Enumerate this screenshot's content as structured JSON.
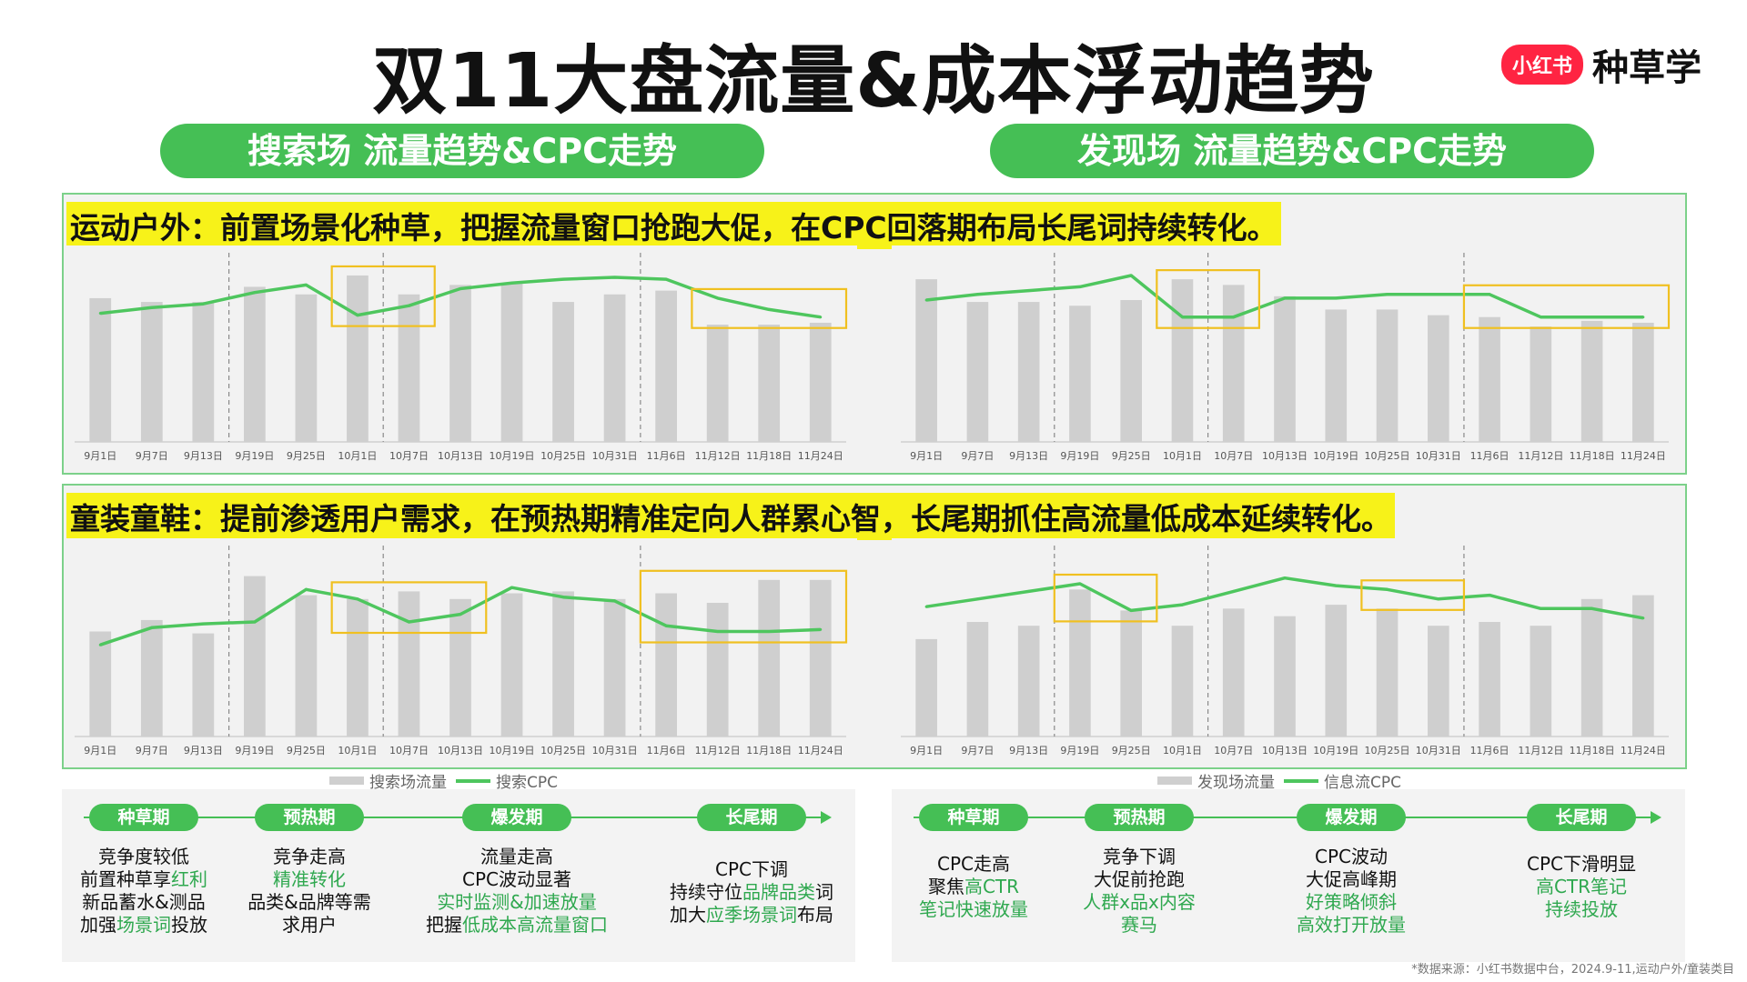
{
  "title": "双11大盘流量&成本浮动趋势",
  "brand": {
    "logo": "小红书",
    "text": "种草学"
  },
  "sections": [
    {
      "pill": "搜索场 流量趋势&CPC走势"
    },
    {
      "pill": "发现场 流量趋势&CPC走势"
    }
  ],
  "rows": [
    {
      "heading": "运动户外：前置场景化种草，把握流量窗口抢跑大促，在CPC回落期布局长尾词持续转化。"
    },
    {
      "heading": "童装童鞋：提前渗透用户需求，在预热期精准定向人群累心智，长尾期抓住高流量低成本延续转化。"
    }
  ],
  "chart_data": [
    {
      "type": "bar",
      "panel": "运动户外-搜索场",
      "categories": [
        "9月1日",
        "9月7日",
        "9月13日",
        "9月19日",
        "9月25日",
        "10月1日",
        "10月7日",
        "10月13日",
        "10月19日",
        "10月25日",
        "10月31日",
        "11月6日",
        "11月12日",
        "11月18日",
        "11月24日"
      ],
      "series": [
        {
          "name": "搜索场流量",
          "kind": "bar",
          "values": [
            76,
            74,
            74,
            82,
            78,
            88,
            78,
            83,
            84,
            74,
            78,
            80,
            62,
            62,
            63
          ]
        },
        {
          "name": "搜索CPC",
          "kind": "line",
          "values": [
            68,
            71,
            73,
            79,
            83,
            67,
            72,
            81,
            84,
            86,
            87,
            86,
            76,
            70,
            66
          ]
        }
      ],
      "ylim": [
        0,
        100
      ],
      "vlines_after": [
        "9月13日",
        "10月1日",
        "10月31日"
      ],
      "highlight_boxes": [
        [
          "10月1日",
          "10月7日"
        ],
        [
          "11月12日",
          "11月24日"
        ]
      ]
    },
    {
      "type": "bar",
      "panel": "运动户外-发现场",
      "categories": [
        "9月1日",
        "9月7日",
        "9月13日",
        "9月19日",
        "9月25日",
        "10月1日",
        "10月7日",
        "10月13日",
        "10月19日",
        "10月25日",
        "10月31日",
        "11月6日",
        "11月12日",
        "11月18日",
        "11月24日"
      ],
      "series": [
        {
          "name": "发现场流量",
          "kind": "bar",
          "values": [
            86,
            74,
            74,
            72,
            75,
            86,
            83,
            77,
            70,
            70,
            67,
            66,
            61,
            64,
            63
          ]
        },
        {
          "name": "信息流CPC",
          "kind": "line",
          "values": [
            75,
            78,
            80,
            82,
            88,
            66,
            66,
            76,
            76,
            78,
            78,
            78,
            66,
            66,
            66
          ]
        }
      ],
      "ylim": [
        0,
        100
      ],
      "vlines_after": [
        "9月13日",
        "10月1日",
        "10月31日"
      ],
      "highlight_boxes": [
        [
          "10月1日",
          "10月7日"
        ],
        [
          "11月6日",
          "11月24日"
        ]
      ]
    },
    {
      "type": "bar",
      "panel": "童装童鞋-搜索场",
      "categories": [
        "9月1日",
        "9月7日",
        "9月13日",
        "9月19日",
        "9月25日",
        "10月1日",
        "10月7日",
        "10月13日",
        "10月19日",
        "10月25日",
        "10月31日",
        "11月6日",
        "11月12日",
        "11月18日",
        "11月24日"
      ],
      "series": [
        {
          "name": "搜索场流量",
          "kind": "bar",
          "values": [
            55,
            61,
            54,
            84,
            74,
            72,
            76,
            72,
            75,
            76,
            72,
            75,
            70,
            82,
            82
          ]
        },
        {
          "name": "搜索CPC",
          "kind": "line",
          "values": [
            48,
            57,
            59,
            60,
            77,
            72,
            60,
            64,
            78,
            73,
            71,
            58,
            55,
            55,
            56
          ]
        }
      ],
      "ylim": [
        0,
        100
      ],
      "vlines_after": [
        "9月13日",
        "10月1日",
        "10月31日"
      ],
      "highlight_boxes": [
        [
          "10月1日",
          "10月13日"
        ],
        [
          "11月6日",
          "11月24日"
        ]
      ]
    },
    {
      "type": "bar",
      "panel": "童装童鞋-发现场",
      "categories": [
        "9月1日",
        "9月7日",
        "9月13日",
        "9月19日",
        "9月25日",
        "10月1日",
        "10月7日",
        "10月13日",
        "10月19日",
        "10月25日",
        "10月31日",
        "11月6日",
        "11月12日",
        "11月18日",
        "11月24日"
      ],
      "series": [
        {
          "name": "发现场流量",
          "kind": "bar",
          "values": [
            51,
            60,
            58,
            77,
            66,
            58,
            67,
            63,
            69,
            67,
            58,
            60,
            58,
            72,
            74
          ]
        },
        {
          "name": "信息流CPC",
          "kind": "line",
          "values": [
            68,
            72,
            76,
            80,
            66,
            69,
            76,
            83,
            79,
            77,
            72,
            74,
            67,
            67,
            62
          ]
        }
      ],
      "ylim": [
        0,
        100
      ],
      "vlines_after": [
        "9月13日",
        "10月1日",
        "10月31日"
      ],
      "highlight_boxes": [
        [
          "9月19日",
          "9月25日"
        ],
        [
          "10月25日",
          "10月31日"
        ]
      ]
    }
  ],
  "legends": [
    {
      "bar": "搜索场流量",
      "line": "搜索CPC"
    },
    {
      "bar": "发现场流量",
      "line": "信息流CPC"
    }
  ],
  "phases": [
    {
      "label": "种草期",
      "lines": [
        [
          {
            "t": "竞争度较低"
          }
        ],
        [
          {
            "t": "前置种草享"
          },
          {
            "t": "红利",
            "g": true
          }
        ],
        [
          {
            "t": "新品蓄水&测品"
          }
        ],
        [
          {
            "t": "加强"
          },
          {
            "t": "场景词",
            "g": true
          },
          {
            "t": "投放"
          }
        ]
      ]
    },
    {
      "label": "预热期",
      "lines": [
        [
          {
            "t": "竞争走高"
          }
        ],
        [
          {
            "t": "精准转化",
            "g": true
          }
        ],
        [
          {
            "t": "品类&品牌等需"
          }
        ],
        [
          {
            "t": "求用户"
          }
        ]
      ]
    },
    {
      "label": "爆发期",
      "lines": [
        [
          {
            "t": "流量走高"
          }
        ],
        [
          {
            "t": "CPC波动显著"
          }
        ],
        [
          {
            "t": "实时监测&加速放量",
            "g": true
          }
        ],
        [
          {
            "t": "把握"
          },
          {
            "t": "低成本高流量窗口",
            "g": true
          }
        ]
      ]
    },
    {
      "label": "长尾期",
      "lines": [
        [
          {
            "t": "CPC下调"
          }
        ],
        [
          {
            "t": "持续守位"
          },
          {
            "t": "品牌品类",
            "g": true
          },
          {
            "t": "词"
          }
        ],
        [
          {
            "t": "加大"
          },
          {
            "t": "应季场景词",
            "g": true
          },
          {
            "t": "布局"
          }
        ]
      ]
    },
    {
      "label": "种草期",
      "lines": [
        [
          {
            "t": "CPC走高"
          }
        ],
        [
          {
            "t": "聚焦"
          },
          {
            "t": "高CTR",
            "g": true
          }
        ],
        [
          {
            "t": "笔记快速放量",
            "g": true
          }
        ]
      ]
    },
    {
      "label": "预热期",
      "lines": [
        [
          {
            "t": "竞争下调"
          }
        ],
        [
          {
            "t": "大促前抢跑"
          }
        ],
        [
          {
            "t": "人群x品x内容",
            "g": true
          }
        ],
        [
          {
            "t": "赛马",
            "g": true
          }
        ]
      ]
    },
    {
      "label": "爆发期",
      "lines": [
        [
          {
            "t": "CPC波动"
          }
        ],
        [
          {
            "t": "大促高峰期"
          }
        ],
        [
          {
            "t": "好策略倾斜",
            "g": true
          }
        ],
        [
          {
            "t": "高效打开放量",
            "g": true
          }
        ]
      ]
    },
    {
      "label": "长尾期",
      "lines": [
        [
          {
            "t": "CPC下滑明显"
          }
        ],
        [
          {
            "t": "高CTR笔记",
            "g": true
          }
        ],
        [
          {
            "t": "持续投放",
            "g": true
          }
        ]
      ]
    }
  ],
  "source": "*数据来源：小红书数据中台，2024.9-11,运动户外/童装类目",
  "colors": {
    "green": "#45bf55",
    "cpc_line": "#4ec65e",
    "bar": "#cfcfcf",
    "box": "#f0c020",
    "highlight": "#f7f219"
  }
}
